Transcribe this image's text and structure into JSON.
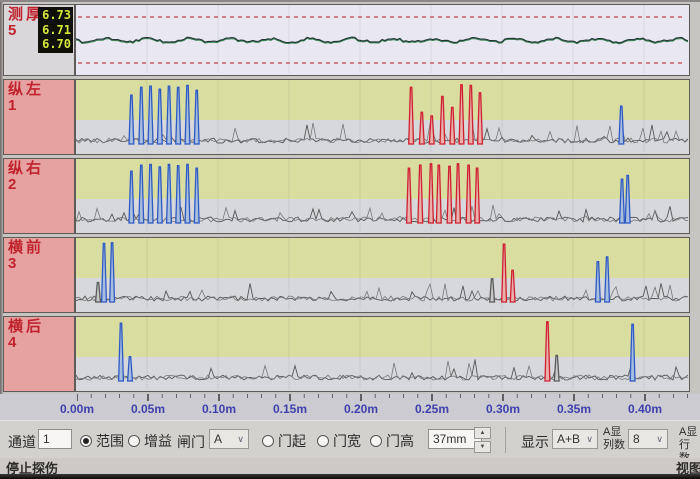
{
  "thickness": {
    "label1": "测厚",
    "label2": "5",
    "readings": [
      "6.73",
      "6.71",
      "6.70"
    ]
  },
  "channels": [
    {
      "label1": "纵左",
      "label2": "1",
      "seed": 21,
      "spikes": [
        {
          "m": 0.039,
          "h": 0.8,
          "c": "blue"
        },
        {
          "m": 0.046,
          "h": 0.93,
          "c": "blue"
        },
        {
          "m": 0.0525,
          "h": 0.95,
          "c": "blue"
        },
        {
          "m": 0.059,
          "h": 0.9,
          "c": "blue"
        },
        {
          "m": 0.0655,
          "h": 0.95,
          "c": "blue"
        },
        {
          "m": 0.072,
          "h": 0.93,
          "c": "blue"
        },
        {
          "m": 0.0785,
          "h": 0.96,
          "c": "blue"
        },
        {
          "m": 0.085,
          "h": 0.88,
          "c": "blue"
        },
        {
          "m": 0.236,
          "h": 0.93,
          "c": "red"
        },
        {
          "m": 0.2435,
          "h": 0.52,
          "c": "red"
        },
        {
          "m": 0.2505,
          "h": 0.46,
          "c": "red"
        },
        {
          "m": 0.258,
          "h": 0.78,
          "c": "red"
        },
        {
          "m": 0.265,
          "h": 0.6,
          "c": "red"
        },
        {
          "m": 0.2715,
          "h": 0.97,
          "c": "red"
        },
        {
          "m": 0.278,
          "h": 0.96,
          "c": "red"
        },
        {
          "m": 0.2845,
          "h": 0.84,
          "c": "red"
        },
        {
          "m": 0.384,
          "h": 0.62,
          "c": "blue"
        }
      ]
    },
    {
      "label1": "纵右",
      "label2": "2",
      "seed": 22,
      "spikes": [
        {
          "m": 0.039,
          "h": 0.85,
          "c": "blue"
        },
        {
          "m": 0.046,
          "h": 0.95,
          "c": "blue"
        },
        {
          "m": 0.0525,
          "h": 0.96,
          "c": "blue"
        },
        {
          "m": 0.059,
          "h": 0.92,
          "c": "blue"
        },
        {
          "m": 0.0655,
          "h": 0.96,
          "c": "blue"
        },
        {
          "m": 0.072,
          "h": 0.94,
          "c": "blue"
        },
        {
          "m": 0.0785,
          "h": 0.96,
          "c": "blue"
        },
        {
          "m": 0.085,
          "h": 0.9,
          "c": "blue"
        },
        {
          "m": 0.2345,
          "h": 0.9,
          "c": "red"
        },
        {
          "m": 0.2425,
          "h": 0.95,
          "c": "red"
        },
        {
          "m": 0.25,
          "h": 0.97,
          "c": "red"
        },
        {
          "m": 0.2555,
          "h": 0.95,
          "c": "red"
        },
        {
          "m": 0.263,
          "h": 0.93,
          "c": "red"
        },
        {
          "m": 0.269,
          "h": 0.97,
          "c": "red"
        },
        {
          "m": 0.2765,
          "h": 0.95,
          "c": "red"
        },
        {
          "m": 0.2825,
          "h": 0.9,
          "c": "red"
        },
        {
          "m": 0.3845,
          "h": 0.72,
          "c": "blue"
        },
        {
          "m": 0.3885,
          "h": 0.78,
          "c": "blue"
        }
      ]
    },
    {
      "label1": "横前",
      "label2": "3",
      "seed": 23,
      "spikes": [
        {
          "m": 0.0155,
          "h": 0.32,
          "c": "gray"
        },
        {
          "m": 0.0197,
          "h": 0.96,
          "c": "blue"
        },
        {
          "m": 0.0254,
          "h": 0.97,
          "c": "blue"
        },
        {
          "m": 0.293,
          "h": 0.38,
          "c": "gray"
        },
        {
          "m": 0.3015,
          "h": 0.95,
          "c": "red"
        },
        {
          "m": 0.3075,
          "h": 0.52,
          "c": "red"
        },
        {
          "m": 0.3675,
          "h": 0.66,
          "c": "blue"
        },
        {
          "m": 0.374,
          "h": 0.74,
          "c": "blue"
        }
      ]
    },
    {
      "label1": "横后",
      "label2": "4",
      "seed": 24,
      "spikes": [
        {
          "m": 0.0317,
          "h": 0.95,
          "c": "blue"
        },
        {
          "m": 0.038,
          "h": 0.4,
          "c": "blue"
        },
        {
          "m": 0.332,
          "h": 0.97,
          "c": "red"
        },
        {
          "m": 0.3385,
          "h": 0.42,
          "c": "gray"
        },
        {
          "m": 0.392,
          "h": 0.93,
          "c": "blue"
        }
      ]
    }
  ],
  "axis": {
    "unit": "m",
    "ticks": [
      "0.00m",
      "0.05m",
      "0.10m",
      "0.15m",
      "0.20m",
      "0.25m",
      "0.30m",
      "0.35m",
      "0.40m"
    ]
  },
  "toolbar": {
    "channel_label": "通道",
    "channel_value": "1",
    "radio_range": "范围",
    "radio_gain": "增益",
    "gate_label": "闸门",
    "gate_value": "A",
    "radio_gate_start": "门起",
    "radio_gate_width": "门宽",
    "radio_gate_height": "门高",
    "gate_width_value": "37mm",
    "display_label": "显示",
    "display_value": "A+B",
    "a_cols_label_1": "A显",
    "a_cols_label_2": "列数",
    "a_cols_value": "8",
    "a_rows_label_1": "A显",
    "a_rows_label_2": "行数",
    "spinner_up": "▲",
    "spinner_down": "▼",
    "chevron": "∨"
  },
  "statusbar": {
    "left": "停止探伤",
    "right": "视图"
  },
  "colors": {
    "spike_blue": "#2e59c4",
    "spike_red": "#cf1f2e",
    "spike_gray": "#5a5a5a",
    "limit_line_red": "#c4404e",
    "trace_green": "#2f7d46",
    "axis_label_blue": "#3f3fae",
    "label_pink_bg": "#e6a2a1",
    "label_red_text": "#c0232e",
    "band_yellow": "#d9dea0",
    "band_gray": "#d6d8dc",
    "reading_yellow": "#d6e63c"
  }
}
